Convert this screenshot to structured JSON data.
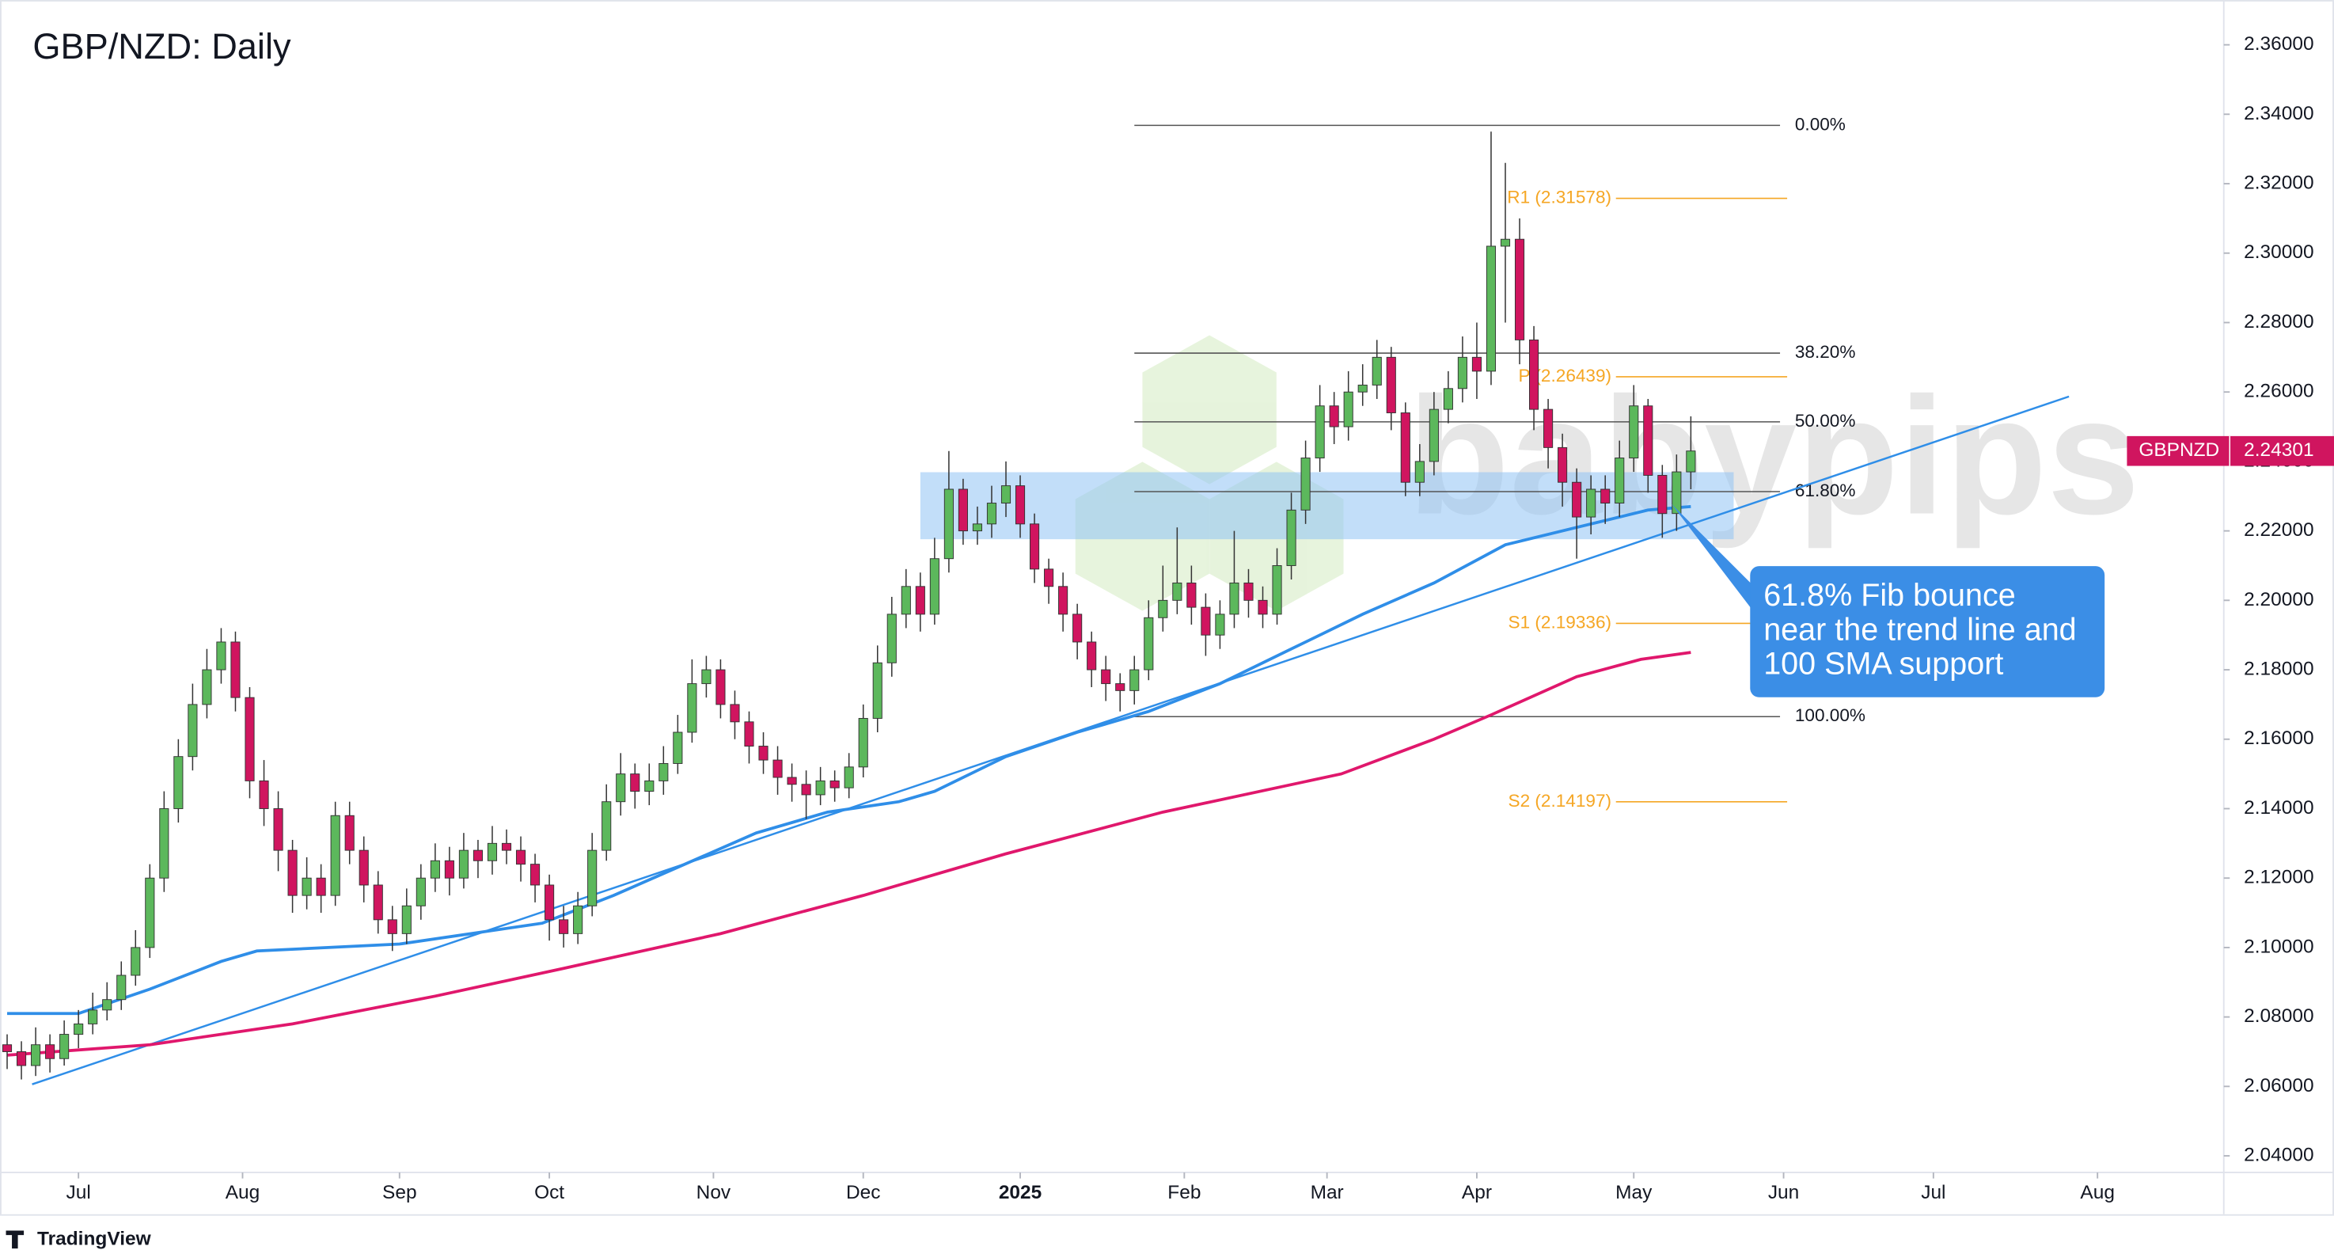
{
  "chart_data": {
    "type": "candlestick",
    "title": "GBP/NZD: Daily",
    "symbol": "GBPNZD",
    "watermark": "babypips",
    "footer": "TradingView",
    "xlim": [
      -1,
      310.7
    ],
    "ylim": [
      2.0352,
      2.3729
    ],
    "yticks": [
      {
        "value": 2.04,
        "label": "2.04000"
      },
      {
        "value": 2.06,
        "label": "2.06000"
      },
      {
        "value": 2.08,
        "label": "2.08000"
      },
      {
        "value": 2.1,
        "label": "2.10000"
      },
      {
        "value": 2.12,
        "label": "2.12000"
      },
      {
        "value": 2.14,
        "label": "2.14000"
      },
      {
        "value": 2.16,
        "label": "2.16000"
      },
      {
        "value": 2.18,
        "label": "2.18000"
      },
      {
        "value": 2.2,
        "label": "2.20000"
      },
      {
        "value": 2.22,
        "label": "2.22000"
      },
      {
        "value": 2.24,
        "label": "2.24000"
      },
      {
        "value": 2.26,
        "label": "2.26000"
      },
      {
        "value": 2.28,
        "label": "2.28000"
      },
      {
        "value": 2.3,
        "label": "2.30000"
      },
      {
        "value": 2.32,
        "label": "2.32000"
      },
      {
        "value": 2.34,
        "label": "2.34000"
      },
      {
        "value": 2.36,
        "label": "2.36000"
      }
    ],
    "xticks": [
      {
        "value": 10,
        "label": "Jul"
      },
      {
        "value": 33,
        "label": "Aug"
      },
      {
        "value": 55,
        "label": "Sep"
      },
      {
        "value": 76,
        "label": "Oct"
      },
      {
        "value": 99,
        "label": "Nov"
      },
      {
        "value": 120,
        "label": "Dec"
      },
      {
        "value": 142,
        "label": "2025"
      },
      {
        "value": 165,
        "label": "Feb"
      },
      {
        "value": 185,
        "label": "Mar"
      },
      {
        "value": 206,
        "label": "Apr"
      },
      {
        "value": 228,
        "label": "May"
      },
      {
        "value": 249,
        "label": "Jun"
      },
      {
        "value": 270,
        "label": "Jul"
      },
      {
        "value": 293,
        "label": "Aug"
      }
    ],
    "up_color": "#5cb85c",
    "down_color": "#d0155f",
    "x": [
      0,
      2,
      4,
      6,
      8,
      10,
      12,
      14,
      16,
      18,
      20,
      22,
      24,
      26,
      28,
      30,
      32,
      34,
      36,
      38,
      40,
      42,
      44,
      46,
      48,
      50,
      52,
      54,
      56,
      58,
      60,
      62,
      64,
      66,
      68,
      70,
      72,
      74,
      76,
      78,
      80,
      82,
      84,
      86,
      88,
      90,
      92,
      94,
      96,
      98,
      100,
      102,
      104,
      106,
      108,
      110,
      112,
      114,
      116,
      118,
      120,
      122,
      124,
      126,
      128,
      130,
      132,
      134,
      136,
      138,
      140,
      142,
      144,
      146,
      148,
      150,
      152,
      154,
      156,
      158,
      160,
      162,
      164,
      166,
      168,
      170,
      172,
      174,
      176,
      178,
      180,
      182,
      184,
      186,
      188,
      190,
      192,
      194,
      196,
      198,
      200,
      202,
      204,
      206,
      208,
      210,
      212,
      214,
      216,
      218,
      220,
      222,
      224,
      226,
      228,
      230,
      232,
      234,
      236
    ],
    "candles": [
      [
        2.072,
        2.075,
        2.065,
        2.07
      ],
      [
        2.07,
        2.073,
        2.062,
        2.066
      ],
      [
        2.066,
        2.077,
        2.063,
        2.072
      ],
      [
        2.072,
        2.075,
        2.064,
        2.068
      ],
      [
        2.068,
        2.079,
        2.066,
        2.075
      ],
      [
        2.075,
        2.082,
        2.071,
        2.078
      ],
      [
        2.078,
        2.087,
        2.075,
        2.082
      ],
      [
        2.082,
        2.09,
        2.079,
        2.085
      ],
      [
        2.085,
        2.096,
        2.082,
        2.092
      ],
      [
        2.092,
        2.105,
        2.089,
        2.1
      ],
      [
        2.1,
        2.124,
        2.097,
        2.12
      ],
      [
        2.12,
        2.145,
        2.116,
        2.14
      ],
      [
        2.14,
        2.16,
        2.136,
        2.155
      ],
      [
        2.155,
        2.176,
        2.151,
        2.17
      ],
      [
        2.17,
        2.186,
        2.166,
        2.18
      ],
      [
        2.18,
        2.192,
        2.176,
        2.188
      ],
      [
        2.188,
        2.191,
        2.168,
        2.172
      ],
      [
        2.172,
        2.175,
        2.143,
        2.148
      ],
      [
        2.148,
        2.154,
        2.135,
        2.14
      ],
      [
        2.14,
        2.145,
        2.122,
        2.128
      ],
      [
        2.128,
        2.131,
        2.11,
        2.115
      ],
      [
        2.115,
        2.126,
        2.111,
        2.12
      ],
      [
        2.12,
        2.124,
        2.11,
        2.115
      ],
      [
        2.115,
        2.142,
        2.112,
        2.138
      ],
      [
        2.138,
        2.142,
        2.124,
        2.128
      ],
      [
        2.128,
        2.132,
        2.113,
        2.118
      ],
      [
        2.118,
        2.122,
        2.104,
        2.108
      ],
      [
        2.108,
        2.112,
        2.099,
        2.104
      ],
      [
        2.104,
        2.117,
        2.101,
        2.112
      ],
      [
        2.112,
        2.124,
        2.108,
        2.12
      ],
      [
        2.12,
        2.13,
        2.116,
        2.125
      ],
      [
        2.125,
        2.129,
        2.115,
        2.12
      ],
      [
        2.12,
        2.133,
        2.117,
        2.128
      ],
      [
        2.128,
        2.131,
        2.12,
        2.125
      ],
      [
        2.125,
        2.135,
        2.121,
        2.13
      ],
      [
        2.13,
        2.134,
        2.124,
        2.128
      ],
      [
        2.128,
        2.132,
        2.119,
        2.124
      ],
      [
        2.124,
        2.127,
        2.113,
        2.118
      ],
      [
        2.118,
        2.121,
        2.102,
        2.108
      ],
      [
        2.108,
        2.112,
        2.1,
        2.104
      ],
      [
        2.104,
        2.116,
        2.101,
        2.112
      ],
      [
        2.112,
        2.133,
        2.109,
        2.128
      ],
      [
        2.128,
        2.147,
        2.125,
        2.142
      ],
      [
        2.142,
        2.156,
        2.138,
        2.15
      ],
      [
        2.15,
        2.153,
        2.14,
        2.145
      ],
      [
        2.145,
        2.153,
        2.141,
        2.148
      ],
      [
        2.148,
        2.158,
        2.144,
        2.153
      ],
      [
        2.153,
        2.167,
        2.15,
        2.162
      ],
      [
        2.162,
        2.183,
        2.159,
        2.176
      ],
      [
        2.176,
        2.184,
        2.172,
        2.18
      ],
      [
        2.18,
        2.183,
        2.166,
        2.17
      ],
      [
        2.17,
        2.174,
        2.16,
        2.165
      ],
      [
        2.165,
        2.168,
        2.153,
        2.158
      ],
      [
        2.158,
        2.162,
        2.15,
        2.154
      ],
      [
        2.154,
        2.158,
        2.144,
        2.149
      ],
      [
        2.149,
        2.153,
        2.142,
        2.147
      ],
      [
        2.147,
        2.151,
        2.137,
        2.144
      ],
      [
        2.144,
        2.152,
        2.141,
        2.148
      ],
      [
        2.148,
        2.151,
        2.142,
        2.146
      ],
      [
        2.146,
        2.156,
        2.143,
        2.152
      ],
      [
        2.152,
        2.17,
        2.149,
        2.166
      ],
      [
        2.166,
        2.187,
        2.162,
        2.182
      ],
      [
        2.182,
        2.201,
        2.178,
        2.196
      ],
      [
        2.196,
        2.209,
        2.192,
        2.204
      ],
      [
        2.204,
        2.208,
        2.191,
        2.196
      ],
      [
        2.196,
        2.218,
        2.193,
        2.212
      ],
      [
        2.212,
        2.243,
        2.208,
        2.232
      ],
      [
        2.232,
        2.235,
        2.216,
        2.22
      ],
      [
        2.22,
        2.227,
        2.216,
        2.222
      ],
      [
        2.222,
        2.233,
        2.218,
        2.228
      ],
      [
        2.228,
        2.24,
        2.224,
        2.233
      ],
      [
        2.233,
        2.236,
        2.218,
        2.222
      ],
      [
        2.222,
        2.225,
        2.205,
        2.209
      ],
      [
        2.209,
        2.212,
        2.199,
        2.204
      ],
      [
        2.204,
        2.208,
        2.191,
        2.196
      ],
      [
        2.196,
        2.199,
        2.183,
        2.188
      ],
      [
        2.188,
        2.191,
        2.175,
        2.18
      ],
      [
        2.18,
        2.184,
        2.171,
        2.176
      ],
      [
        2.176,
        2.179,
        2.168,
        2.174
      ],
      [
        2.174,
        2.184,
        2.17,
        2.18
      ],
      [
        2.18,
        2.2,
        2.177,
        2.195
      ],
      [
        2.195,
        2.21,
        2.191,
        2.2
      ],
      [
        2.2,
        2.221,
        2.196,
        2.205
      ],
      [
        2.205,
        2.21,
        2.193,
        2.198
      ],
      [
        2.198,
        2.202,
        2.184,
        2.19
      ],
      [
        2.19,
        2.2,
        2.186,
        2.196
      ],
      [
        2.196,
        2.22,
        2.192,
        2.205
      ],
      [
        2.205,
        2.209,
        2.195,
        2.2
      ],
      [
        2.2,
        2.204,
        2.192,
        2.196
      ],
      [
        2.196,
        2.215,
        2.193,
        2.21
      ],
      [
        2.21,
        2.231,
        2.206,
        2.226
      ],
      [
        2.226,
        2.246,
        2.222,
        2.241
      ],
      [
        2.241,
        2.262,
        2.237,
        2.256
      ],
      [
        2.256,
        2.26,
        2.245,
        2.25
      ],
      [
        2.25,
        2.266,
        2.246,
        2.26
      ],
      [
        2.26,
        2.268,
        2.256,
        2.262
      ],
      [
        2.262,
        2.275,
        2.258,
        2.27
      ],
      [
        2.27,
        2.273,
        2.249,
        2.254
      ],
      [
        2.254,
        2.257,
        2.23,
        2.234
      ],
      [
        2.234,
        2.245,
        2.23,
        2.24
      ],
      [
        2.24,
        2.26,
        2.236,
        2.255
      ],
      [
        2.255,
        2.266,
        2.251,
        2.261
      ],
      [
        2.261,
        2.276,
        2.257,
        2.27
      ],
      [
        2.27,
        2.28,
        2.258,
        2.266
      ],
      [
        2.266,
        2.335,
        2.262,
        2.302
      ],
      [
        2.302,
        2.326,
        2.28,
        2.304
      ],
      [
        2.304,
        2.31,
        2.268,
        2.275
      ],
      [
        2.275,
        2.279,
        2.249,
        2.255
      ],
      [
        2.255,
        2.258,
        2.238,
        2.244
      ],
      [
        2.244,
        2.248,
        2.227,
        2.234
      ],
      [
        2.234,
        2.238,
        2.212,
        2.224
      ],
      [
        2.224,
        2.236,
        2.219,
        2.232
      ],
      [
        2.232,
        2.236,
        2.222,
        2.228
      ],
      [
        2.228,
        2.246,
        2.224,
        2.241
      ],
      [
        2.241,
        2.262,
        2.237,
        2.256
      ],
      [
        2.256,
        2.258,
        2.231,
        2.236
      ],
      [
        2.236,
        2.239,
        2.218,
        2.225
      ],
      [
        2.225,
        2.242,
        2.22,
        2.237
      ],
      [
        2.237,
        2.253,
        2.232,
        2.24301
      ]
    ],
    "series": [
      {
        "color": "#2f8ee8",
        "x": [
          0,
          10,
          20,
          30,
          35,
          45,
          55,
          65,
          75,
          85,
          95,
          105,
          115,
          125,
          130,
          140,
          150,
          160,
          170,
          180,
          190,
          200,
          210,
          220,
          230,
          236
        ],
        "values": [
          2.081,
          2.081,
          2.088,
          2.096,
          2.099,
          2.1,
          2.101,
          2.104,
          2.107,
          2.115,
          2.124,
          2.133,
          2.139,
          2.142,
          2.145,
          2.155,
          2.162,
          2.168,
          2.176,
          2.186,
          2.196,
          2.205,
          2.216,
          2.221,
          2.226,
          2.227
        ]
      },
      {
        "color": "#e0176c",
        "x": [
          0,
          20,
          40,
          60,
          78,
          100,
          120,
          140,
          162,
          187,
          200,
          208,
          220,
          229,
          236
        ],
        "values": [
          2.069,
          2.072,
          2.078,
          2.086,
          2.094,
          2.104,
          2.115,
          2.127,
          2.139,
          2.15,
          2.16,
          2.167,
          2.178,
          2.183,
          2.185
        ]
      }
    ],
    "trendline": {
      "color": "#2f8ee8",
      "x": [
        3.5,
        289
      ],
      "values": [
        2.0606,
        2.2587
      ]
    },
    "zone": {
      "color": "#8fc3f4",
      "x": [
        128,
        242
      ],
      "values": [
        2.2176,
        2.2369
      ]
    },
    "fib_x": [
      158,
      248.5
    ],
    "fib_levels": [
      {
        "label": "0.00%",
        "value": 2.3368
      },
      {
        "label": "38.20%",
        "value": 2.2712
      },
      {
        "label": "50.00%",
        "value": 2.2514
      },
      {
        "label": "61.80%",
        "value": 2.2313
      },
      {
        "label": "100.00%",
        "value": 2.1665
      }
    ],
    "pivot_color": "#f5a623",
    "pivot_x": [
      225.5,
      249.5
    ],
    "pivots": [
      {
        "label": "R1 (2.31578)",
        "value": 2.31578
      },
      {
        "label": "P (2.26439)",
        "value": 2.26439
      },
      {
        "label": "S1 (2.19336)",
        "value": 2.19336
      },
      {
        "label": "S2 (2.14197)",
        "value": 2.14197
      }
    ],
    "annotation": [
      "61.8% Fib bounce",
      "near the trend line and",
      "100 SMA support"
    ]
  }
}
